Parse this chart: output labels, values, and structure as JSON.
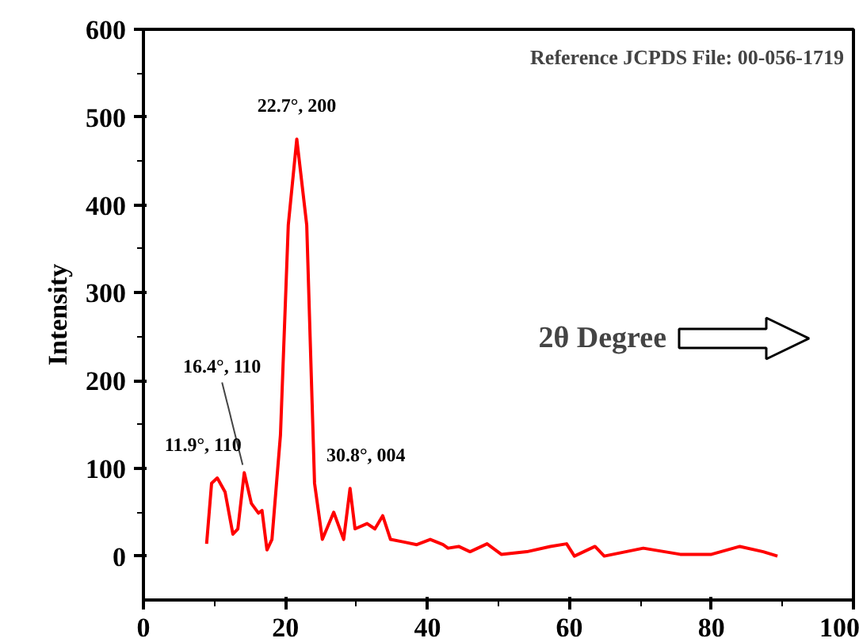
{
  "chart_data": {
    "type": "line",
    "xlabel": "2θ Degree",
    "ylabel": "Intensity",
    "x": [
      8.9,
      9.6,
      10.4,
      11.5,
      12.6,
      13.3,
      14.2,
      15.2,
      16.2,
      16.7,
      17.4,
      18.1,
      19.3,
      20.4,
      21.6,
      23.0,
      24.1,
      25.2,
      26.8,
      28.2,
      29.1,
      29.8,
      31.5,
      32.6,
      33.7,
      34.8,
      36.7,
      38.5,
      40.4,
      42.2,
      42.9,
      44.4,
      46,
      48.4,
      50.4,
      54,
      57.3,
      59.6,
      60.7,
      63.6,
      64.9,
      70.4,
      75.6,
      80,
      84,
      87.3,
      89.3
    ],
    "series": [
      {
        "color": "#ff0000",
        "values": [
          14,
          83,
          89,
          73,
          25,
          31,
          95,
          60,
          49,
          52,
          7,
          19,
          138,
          377,
          475,
          377,
          83,
          19,
          50,
          19,
          77,
          31,
          37,
          31,
          46,
          19,
          16,
          13,
          19,
          13,
          9,
          11,
          5,
          14,
          2,
          5,
          11,
          14,
          0,
          11,
          0,
          9,
          2,
          2,
          11,
          5,
          0
        ]
      }
    ],
    "xlim": [
      0,
      100
    ],
    "ylim": [
      -50,
      600
    ],
    "xticks": [
      0,
      20,
      40,
      60,
      80,
      100
    ],
    "yticks": [
      0,
      100,
      200,
      300,
      400,
      500,
      600
    ],
    "grid": false,
    "marker": "none",
    "line_style": "solid",
    "annotations": [
      "Reference JCPDS File: 00-056-1719",
      {
        "text": "11.9°, 110",
        "x": 10.4,
        "y": 89
      },
      {
        "text": "16.4°, 110",
        "x": 14.2,
        "y": 95
      },
      {
        "text": "22.7°, 200",
        "x": 21.6,
        "y": 475
      },
      {
        "text": "30.8°, 004",
        "x": 29.1,
        "y": 77
      }
    ]
  }
}
